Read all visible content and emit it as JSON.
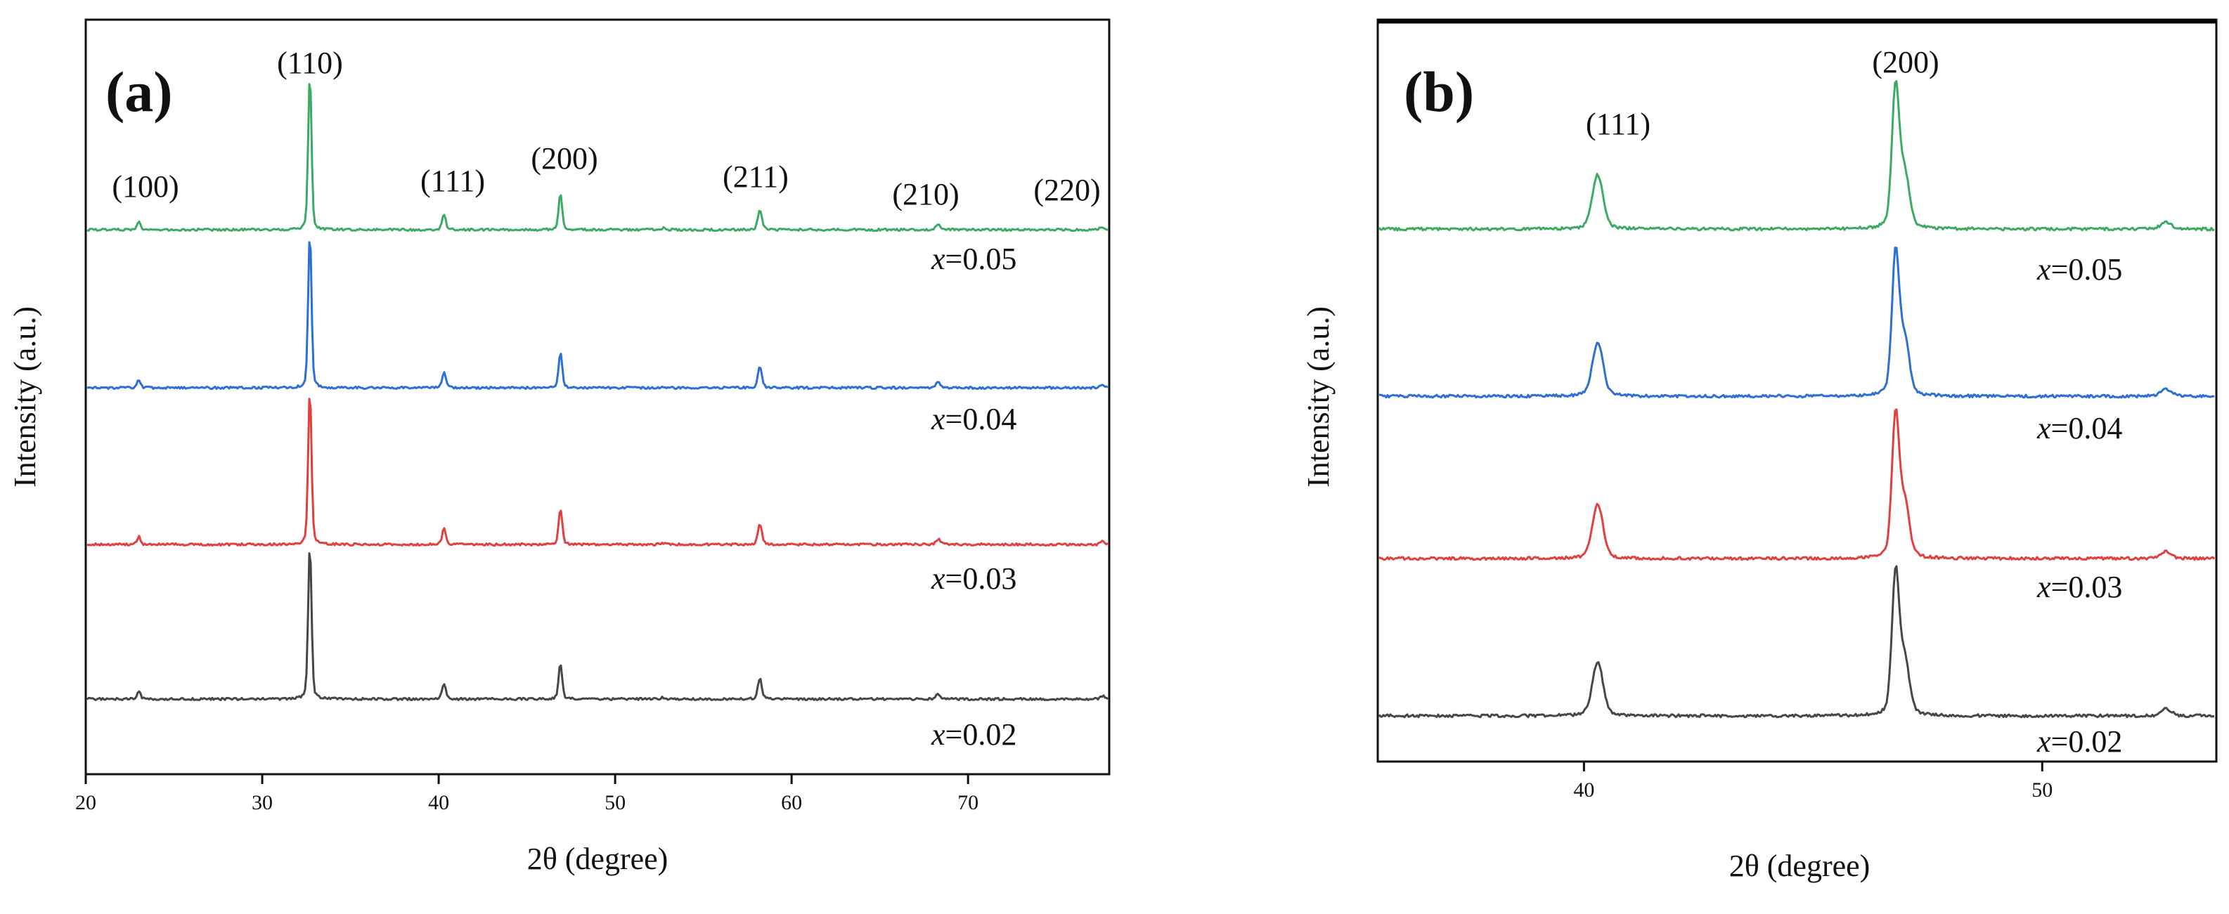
{
  "chart_data": [
    {
      "type": "line",
      "panel_label": "(a)",
      "xlabel": "2θ (degree)",
      "ylabel": "Intensity (a.u.)",
      "xlim": [
        20,
        78
      ],
      "xticks": [
        20,
        30,
        40,
        50,
        60,
        70
      ],
      "peaks": [
        {
          "hkl": "(100)",
          "x": 23.0,
          "h": 0.05,
          "w": 0.14
        },
        {
          "hkl": "(110)",
          "x": 32.7,
          "h": 1.0,
          "w": 0.13
        },
        {
          "hkl": "(111)",
          "x": 40.3,
          "h": 0.1,
          "w": 0.14
        },
        {
          "hkl": "(200)",
          "x": 46.9,
          "h": 0.23,
          "w": 0.14
        },
        {
          "hkl": "(211)",
          "x": 58.2,
          "h": 0.13,
          "w": 0.16
        },
        {
          "hkl": "(210)",
          "x": 68.3,
          "h": 0.035,
          "w": 0.16
        },
        {
          "hkl": "(220)",
          "x": 77.6,
          "h": 0.02,
          "w": 0.16
        }
      ],
      "minor_peaks": [
        {
          "x": 52.7,
          "h": 0.01,
          "w": 0.15
        }
      ],
      "series": [
        {
          "name": "x=0.05",
          "x_symbol": "x",
          "x_value": "=0.05",
          "color": "#3daa63",
          "offset": 3
        },
        {
          "name": "x=0.04",
          "x_symbol": "x",
          "x_value": "=0.04",
          "color": "#2d6fd2",
          "offset": 2
        },
        {
          "name": "x=0.03",
          "x_symbol": "x",
          "x_value": "=0.03",
          "color": "#e0403f",
          "offset": 1
        },
        {
          "name": "x=0.02",
          "x_symbol": "x",
          "x_value": "=0.02",
          "color": "#474747",
          "offset": 0
        }
      ]
    },
    {
      "type": "line",
      "panel_label": "(b)",
      "xlabel": "2θ (degree)",
      "ylabel": "Intensity (a.u.)",
      "xlim": [
        35.5,
        53.8
      ],
      "xticks": [
        40,
        50
      ],
      "peaks": [
        {
          "hkl": "(111)",
          "x": 40.3,
          "h": 0.36,
          "w": 0.16
        },
        {
          "hkl": "(200)",
          "x": 46.8,
          "h": 0.93,
          "w": 0.11
        },
        {
          "hkl": "",
          "x": 47.0,
          "h": 0.35,
          "w": 0.14
        },
        {
          "hkl": "",
          "x": 52.7,
          "h": 0.045,
          "w": 0.16
        }
      ],
      "series": [
        {
          "name": "x=0.05",
          "x_symbol": "x",
          "x_value": "=0.05",
          "color": "#3daa63",
          "offset": 3
        },
        {
          "name": "x=0.04",
          "x_symbol": "x",
          "x_value": "=0.04",
          "color": "#2d6fd2",
          "offset": 2
        },
        {
          "name": "x=0.03",
          "x_symbol": "x",
          "x_value": "=0.03",
          "color": "#e0403f",
          "offset": 1
        },
        {
          "name": "x=0.02",
          "x_symbol": "x",
          "x_value": "=0.02",
          "color": "#474747",
          "offset": 0
        }
      ]
    }
  ]
}
